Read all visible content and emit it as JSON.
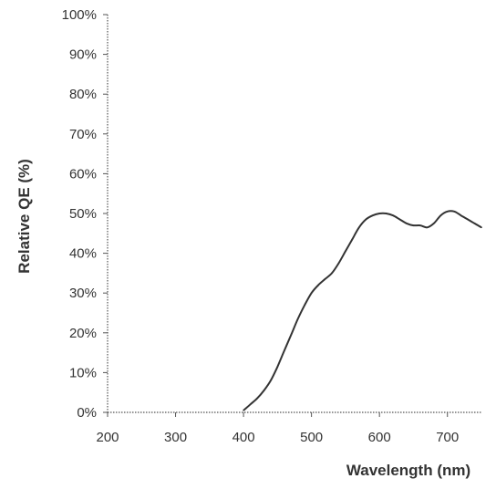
{
  "chart_data": {
    "type": "line",
    "title": "",
    "xlabel": "Wavelength (nm)",
    "ylabel": "Relative QE (%)",
    "xlim": [
      200,
      750
    ],
    "ylim": [
      0,
      100
    ],
    "x_ticks": [
      200,
      300,
      400,
      500,
      600,
      700
    ],
    "x_tick_labels": [
      "200",
      "300",
      "400",
      "500",
      "600",
      "700"
    ],
    "y_ticks": [
      0,
      10,
      20,
      30,
      40,
      50,
      60,
      70,
      80,
      90,
      100
    ],
    "y_tick_labels": [
      "0%",
      "10%",
      "20%",
      "30%",
      "40%",
      "50%",
      "60%",
      "70%",
      "80%",
      "90%",
      "100%"
    ],
    "grid": false,
    "legend": "none",
    "line_color": "#333333",
    "series": [
      {
        "x": [
          400,
          410,
          420,
          430,
          440,
          450,
          460,
          470,
          480,
          490,
          500,
          510,
          520,
          530,
          540,
          550,
          560,
          570,
          580,
          590,
          600,
          610,
          620,
          630,
          640,
          650,
          660,
          670,
          680,
          690,
          700,
          710,
          720,
          730,
          740,
          750
        ],
        "values": [
          0.5,
          2,
          3.5,
          5.5,
          8,
          11.5,
          15.5,
          19.5,
          23.5,
          27,
          30,
          32,
          33.5,
          35,
          37.5,
          40.5,
          43.5,
          46.5,
          48.5,
          49.5,
          50,
          50,
          49.5,
          48.5,
          47.5,
          47,
          47,
          46.5,
          47.5,
          49.5,
          50.5,
          50.5,
          49.5,
          48.5,
          47.5,
          46.5
        ]
      }
    ]
  }
}
